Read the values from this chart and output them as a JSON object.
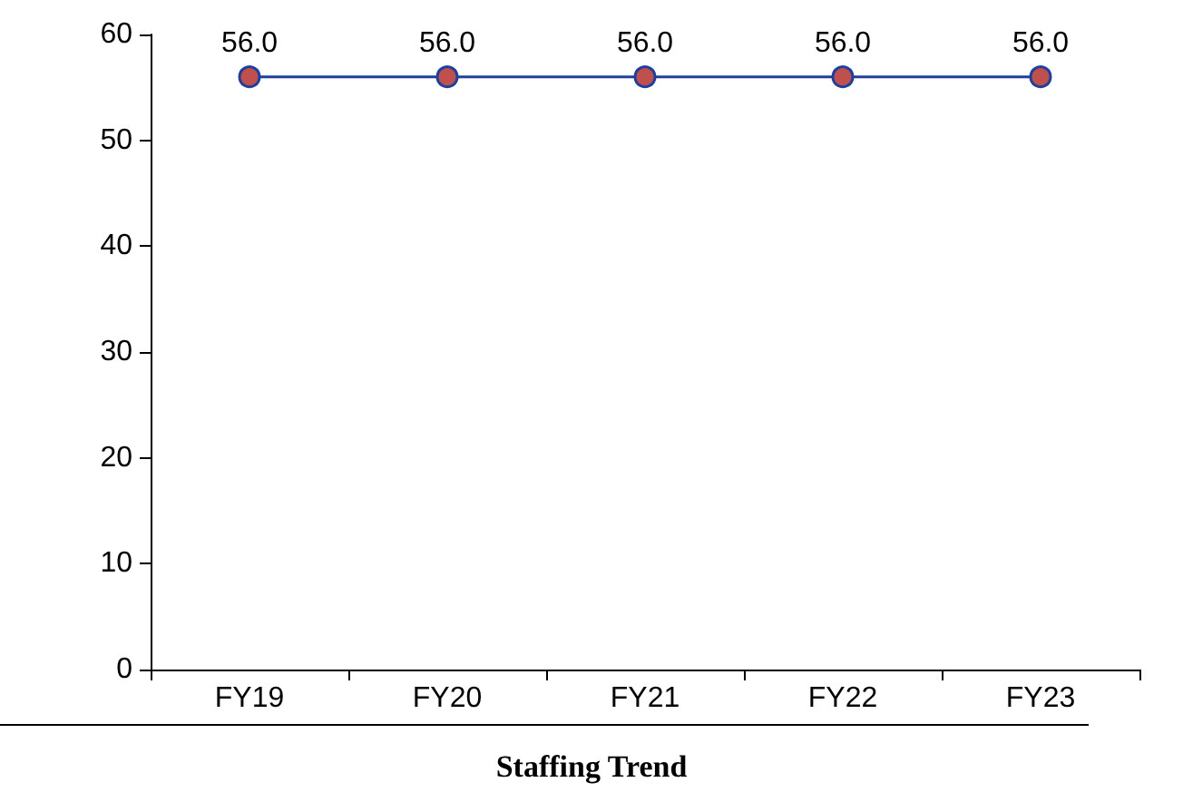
{
  "chart_data": {
    "type": "line",
    "title": "Staffing Trend",
    "categories": [
      "FY19",
      "FY20",
      "FY21",
      "FY22",
      "FY23"
    ],
    "series": [
      {
        "color": "#1f3f9f",
        "values": [
          56.0,
          56.0,
          56.0,
          56.0,
          56.0
        ],
        "value_labels": [
          "56.0",
          "56.0",
          "56.0",
          "56.0",
          "56.0"
        ]
      }
    ],
    "ylim": [
      0,
      60
    ],
    "yticks": [
      0,
      10,
      20,
      30,
      40,
      50,
      60
    ],
    "grid": false,
    "marker": "circle",
    "line_style": "solid"
  }
}
